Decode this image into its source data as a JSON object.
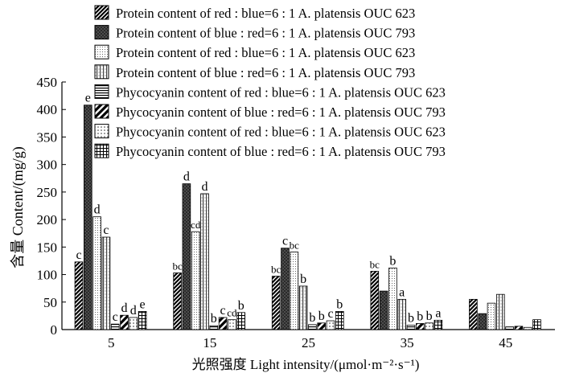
{
  "chart_data": {
    "type": "bar",
    "xlabel": "光照强度 Light intensity/(μmol·m⁻²·s⁻¹)",
    "ylabel": "含量 Content/(mg/g)",
    "ylim": [
      0,
      450
    ],
    "yticks": [
      "0",
      "50",
      "100",
      "150",
      "200",
      "250",
      "300",
      "350",
      "400",
      "450"
    ],
    "categories": [
      "5",
      "15",
      "25",
      "35",
      "45"
    ],
    "legend_position": "top-right",
    "series": [
      {
        "name": "Protein content of red : blue=6 : 1 A. platensis OUC 623",
        "pattern": "diag-dense",
        "values": [
          123,
          103,
          97,
          106,
          55
        ],
        "labels": [
          "c",
          "bc",
          "bc",
          "bc",
          ""
        ]
      },
      {
        "name": "Protein content of blue : red=6 : 1 A. platensis OUC 793",
        "pattern": "crosshatch-dark",
        "values": [
          408,
          265,
          148,
          70,
          29
        ],
        "labels": [
          "e",
          "d",
          "c",
          "",
          ""
        ]
      },
      {
        "name": "Protein content of red : blue=6 : 1 A. platensis OUC 623",
        "pattern": "dots",
        "values": [
          205,
          178,
          141,
          112,
          48
        ],
        "labels": [
          "d",
          "cd",
          "bc",
          "b",
          ""
        ]
      },
      {
        "name": "Protein content of blue : red=6 : 1 A. platensis OUC 793",
        "pattern": "vlines-dots",
        "values": [
          168,
          247,
          79,
          55,
          64
        ],
        "labels": [
          "c",
          "d",
          "b",
          "a",
          ""
        ]
      },
      {
        "name": "Phycocyanin content of red : blue=6 : 1 A. platensis OUC 623",
        "pattern": "hlines",
        "values": [
          10,
          7,
          9,
          8,
          5
        ],
        "labels": [
          "c",
          "b",
          "b",
          "b",
          ""
        ]
      },
      {
        "name": "Phycocyanin content of blue : red=6 : 1 A. platensis OUC 793",
        "pattern": "diag-wide",
        "values": [
          26,
          22,
          12,
          11,
          6
        ],
        "labels": [
          "d",
          "c",
          "b",
          "b",
          ""
        ]
      },
      {
        "name": "Phycocyanin content of red : blue=6 : 1 A. platensis OUC 623",
        "pattern": "dots-sparse",
        "values": [
          22,
          18,
          16,
          12,
          4
        ],
        "labels": [
          "d",
          "cd",
          "c",
          "b",
          ""
        ]
      },
      {
        "name": "Phycocyanin content of blue : red=6 : 1 A. platensis OUC 793",
        "pattern": "grid",
        "values": [
          33,
          31,
          33,
          17,
          18
        ],
        "labels": [
          "e",
          "b",
          "b",
          "a",
          ""
        ]
      }
    ]
  }
}
